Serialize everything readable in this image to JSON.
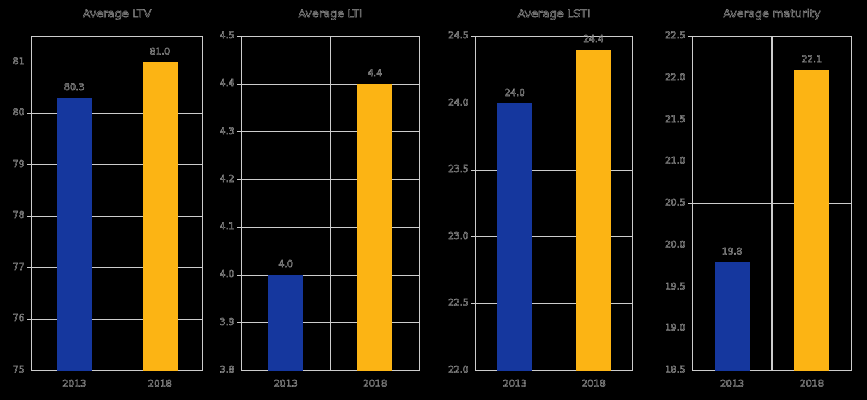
{
  "figure": {
    "background": "#000000",
    "description_text": "",
    "years_compared": [
      "2013",
      "2018"
    ]
  },
  "style": {
    "bar_colors": [
      "#15379E",
      "#FCB414"
    ],
    "grid_color": "#cccccc",
    "ghost_text_color": "#8f8f8f",
    "background": "#000000"
  },
  "chart_data": [
    {
      "type": "bar",
      "title": "Average LTV",
      "categories": [
        "2013",
        "2018"
      ],
      "values": [
        80.3,
        81.0
      ],
      "value_labels": [
        "80.3",
        "81.0"
      ],
      "ylim": [
        75,
        81.5
      ],
      "yticks": [
        75,
        76,
        77,
        78,
        79,
        80,
        81
      ],
      "ytick_labels": [
        "75",
        "76",
        "77",
        "78",
        "79",
        "80",
        "81"
      ],
      "grid": true,
      "legend": false
    },
    {
      "type": "bar",
      "title": "Average LTI",
      "categories": [
        "2013",
        "2018"
      ],
      "values": [
        4.0,
        4.4
      ],
      "value_labels": [
        "4.0",
        "4.4"
      ],
      "ylim": [
        3.8,
        4.5
      ],
      "yticks": [
        3.8,
        3.9,
        4.0,
        4.1,
        4.2,
        4.3,
        4.4,
        4.5
      ],
      "ytick_labels": [
        "3.8",
        "3.9",
        "4.0",
        "4.1",
        "4.2",
        "4.3",
        "4.4",
        "4.5"
      ],
      "grid": true,
      "legend": false
    },
    {
      "type": "bar",
      "title": "Average LSTI",
      "categories": [
        "2013",
        "2018"
      ],
      "values": [
        24.0,
        24.4
      ],
      "value_labels": [
        "24.0",
        "24.4"
      ],
      "ylim": [
        22.0,
        24.5
      ],
      "yticks": [
        22.0,
        22.5,
        23.0,
        23.5,
        24.0,
        24.5
      ],
      "ytick_labels": [
        "22.0",
        "22.5",
        "23.0",
        "23.5",
        "24.0",
        "24.5"
      ],
      "grid": true,
      "legend": false
    },
    {
      "type": "bar",
      "title": "Average maturity",
      "categories": [
        "2013",
        "2018"
      ],
      "values": [
        19.8,
        22.1
      ],
      "value_labels": [
        "19.8",
        "22.1"
      ],
      "ylim": [
        18.5,
        22.5
      ],
      "yticks": [
        18.5,
        19.0,
        19.5,
        20.0,
        20.5,
        21.0,
        21.5,
        22.0,
        22.5
      ],
      "ytick_labels": [
        "18.5",
        "19.0",
        "19.5",
        "20.0",
        "20.5",
        "21.0",
        "21.5",
        "22.0",
        "22.5"
      ],
      "grid": true,
      "legend": false
    }
  ]
}
